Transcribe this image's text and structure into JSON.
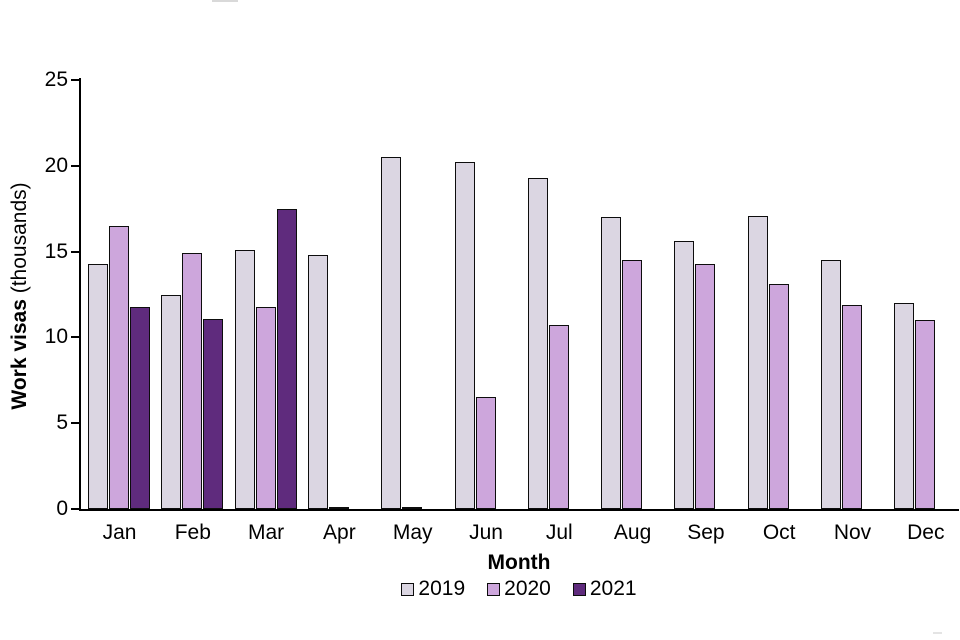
{
  "chart_data": {
    "type": "bar",
    "title": "",
    "categories": [
      "Jan",
      "Feb",
      "Mar",
      "Apr",
      "May",
      "Jun",
      "Jul",
      "Aug",
      "Sep",
      "Oct",
      "Nov",
      "Dec"
    ],
    "series": [
      {
        "name": "2019",
        "color": "#dbd6e2",
        "values": [
          14.3,
          12.5,
          15.1,
          14.8,
          20.5,
          20.2,
          19.3,
          17.0,
          15.6,
          17.1,
          14.5,
          12.0
        ]
      },
      {
        "name": "2020",
        "color": "#cda6dc",
        "values": [
          16.5,
          14.9,
          11.8,
          0.1,
          0.1,
          6.5,
          10.7,
          14.5,
          14.3,
          13.1,
          11.9,
          11.0
        ]
      },
      {
        "name": "2021",
        "color": "#5f2b7d",
        "values": [
          11.8,
          11.1,
          17.5,
          null,
          null,
          null,
          null,
          null,
          null,
          null,
          null,
          null
        ]
      }
    ],
    "xlabel": "Month",
    "ylabel": "Work visas (thousands)",
    "ylabel_bold": "Work visas",
    "ylabel_unit": " (thousands)",
    "ylim": [
      0,
      25
    ],
    "yticks": [
      0,
      5,
      10,
      15,
      20,
      25
    ],
    "grid": false,
    "legend_position": "bottom",
    "axis_color": "#000000",
    "bar_outline_color": "#0d0d0d",
    "background_color": "#ffffff"
  }
}
